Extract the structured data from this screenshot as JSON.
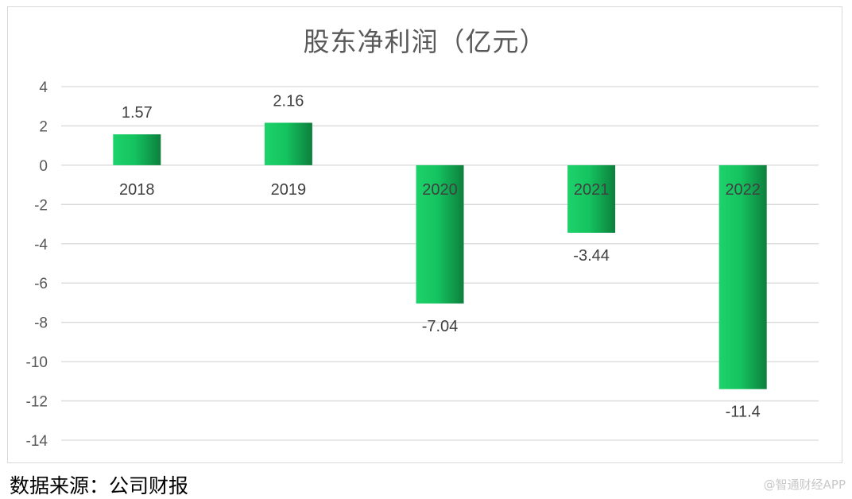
{
  "chart_data": {
    "type": "bar",
    "title": "股东净利润（亿元）",
    "categories": [
      "2018",
      "2019",
      "2020",
      "2021",
      "2022"
    ],
    "values": [
      1.57,
      2.16,
      -7.04,
      -3.44,
      -11.4
    ],
    "data_labels": [
      "1.57",
      "2.16",
      "-7.04",
      "-3.44",
      "-11.4"
    ],
    "ylim": [
      -14,
      4
    ],
    "yticks": [
      4,
      2,
      0,
      -2,
      -4,
      -6,
      -8,
      -10,
      -12,
      -14
    ],
    "ytick_labels": [
      "4",
      "2",
      "0",
      "-2",
      "-4",
      "-6",
      "-8",
      "-10",
      "-12",
      "-14"
    ],
    "xlabel": "",
    "ylabel": "",
    "grid": true,
    "legend": "none",
    "colors": {
      "bar_light": "#1ed26b",
      "bar_dark": "#0d7f3d",
      "grid": "#d9d9d9",
      "text": "#404040",
      "tick": "#595959"
    }
  },
  "footer": {
    "source": "数据来源：公司财报",
    "watermark": "@智通财经APP"
  }
}
